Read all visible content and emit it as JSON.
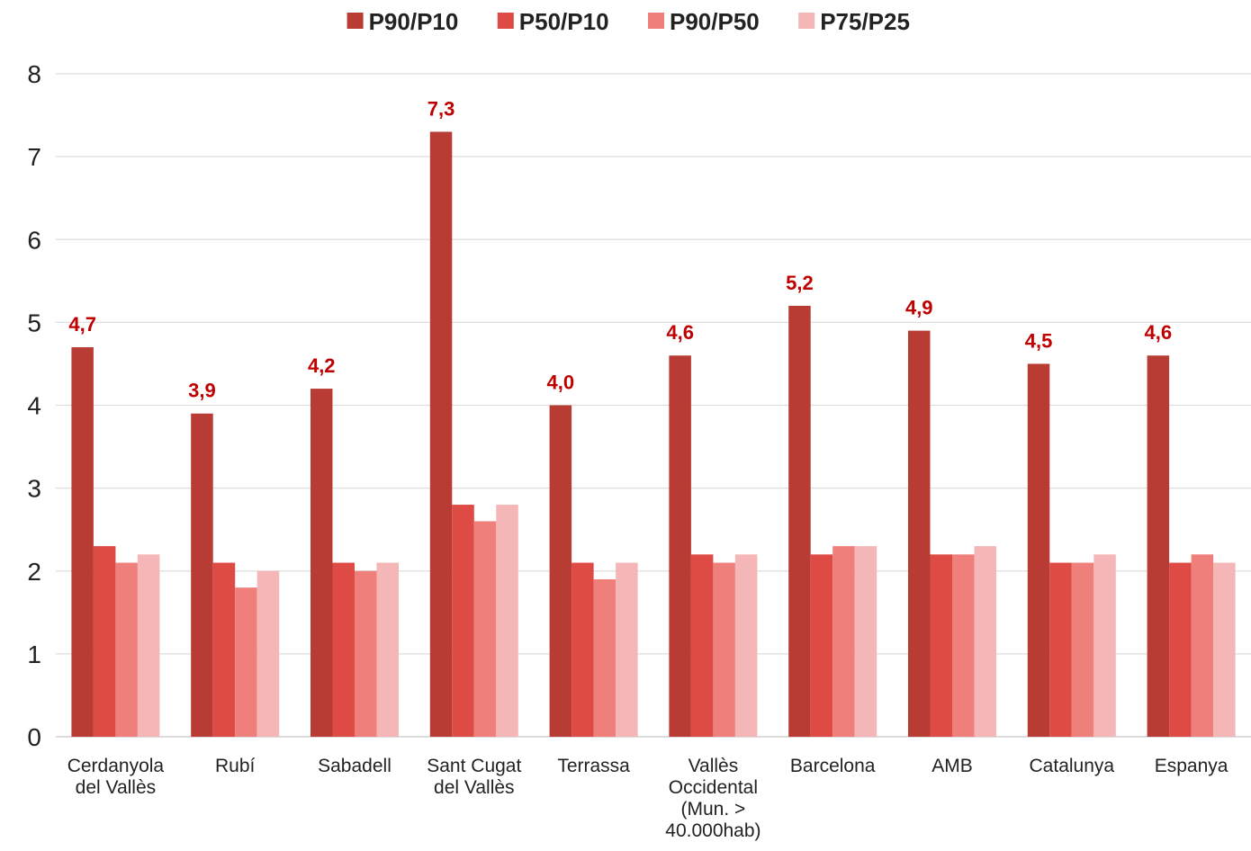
{
  "chart_data": {
    "type": "bar",
    "categories": [
      [
        "Cerdanyola",
        "del Vallès"
      ],
      [
        "Rubí"
      ],
      [
        "Sabadell"
      ],
      [
        "Sant Cugat",
        "del Vallès"
      ],
      [
        "Terrassa"
      ],
      [
        "Vallès",
        "Occidental",
        "(Mun. >",
        "40.000hab)"
      ],
      [
        "Barcelona"
      ],
      [
        "AMB"
      ],
      [
        "Catalunya"
      ],
      [
        "Espanya"
      ]
    ],
    "series": [
      {
        "name": "P90/P10",
        "color": "#b83c34",
        "values": [
          4.7,
          3.9,
          4.2,
          7.3,
          4.0,
          4.6,
          5.2,
          4.9,
          4.5,
          4.6
        ]
      },
      {
        "name": "P50/P10",
        "color": "#dd4b44",
        "values": [
          2.3,
          2.1,
          2.1,
          2.8,
          2.1,
          2.2,
          2.2,
          2.2,
          2.1,
          2.1
        ]
      },
      {
        "name": "P90/P50",
        "color": "#ee7f7a",
        "values": [
          2.1,
          1.8,
          2.0,
          2.6,
          1.9,
          2.1,
          2.3,
          2.2,
          2.1,
          2.2
        ]
      },
      {
        "name": "P75/P25",
        "color": "#f4b6b6",
        "values": [
          2.2,
          2.0,
          2.1,
          2.8,
          2.1,
          2.2,
          2.3,
          2.3,
          2.2,
          2.1
        ]
      }
    ],
    "data_labels": [
      "4,7",
      "3,9",
      "4,2",
      "7,3",
      "4,0",
      "4,6",
      "5,2",
      "4,9",
      "4,5",
      "4,6"
    ],
    "yticks": [
      "0",
      "1",
      "2",
      "3",
      "4",
      "5",
      "6",
      "7",
      "8"
    ],
    "ylim": [
      0,
      8
    ],
    "title": "",
    "xlabel": "",
    "ylabel": "",
    "grid": true,
    "legend_position": "top"
  }
}
